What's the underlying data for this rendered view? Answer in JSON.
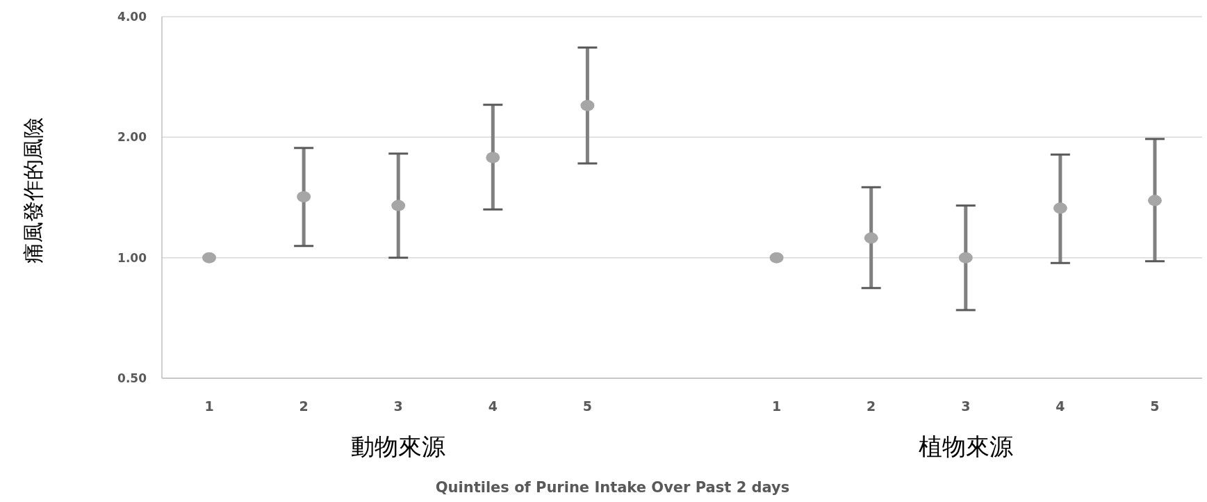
{
  "chart_data": {
    "type": "scatter",
    "xlabel": "Quintiles of Purine Intake Over Past 2 days",
    "ylabel": "痛風發作的風險",
    "categories": [
      "1",
      "2",
      "3",
      "4",
      "5",
      null,
      "1",
      "2",
      "3",
      "4",
      "5"
    ],
    "series": [
      {
        "color": "#a6a6a6",
        "values": [
          1.0,
          1.42,
          1.35,
          1.78,
          2.4,
          null,
          1.0,
          1.12,
          1.0,
          1.33,
          1.39
        ],
        "errors": [
          null,
          [
            1.07,
            1.88
          ],
          [
            1.0,
            1.82
          ],
          [
            1.32,
            2.41
          ],
          [
            1.72,
            3.35
          ],
          null,
          null,
          [
            0.84,
            1.5
          ],
          [
            0.74,
            1.35
          ],
          [
            0.97,
            1.81
          ],
          [
            0.98,
            1.98
          ]
        ]
      }
    ],
    "annotations": [
      "動物來源",
      "植物來源"
    ],
    "log": true,
    "ylim": [
      0.5,
      4
    ],
    "yticks": [
      {
        "value": 0.5,
        "label": "0.50"
      },
      {
        "value": 1,
        "label": "1.00"
      },
      {
        "value": 2,
        "label": "2.00"
      },
      {
        "value": 4,
        "label": "4.00"
      }
    ],
    "grid": "y",
    "marker": "circle"
  }
}
